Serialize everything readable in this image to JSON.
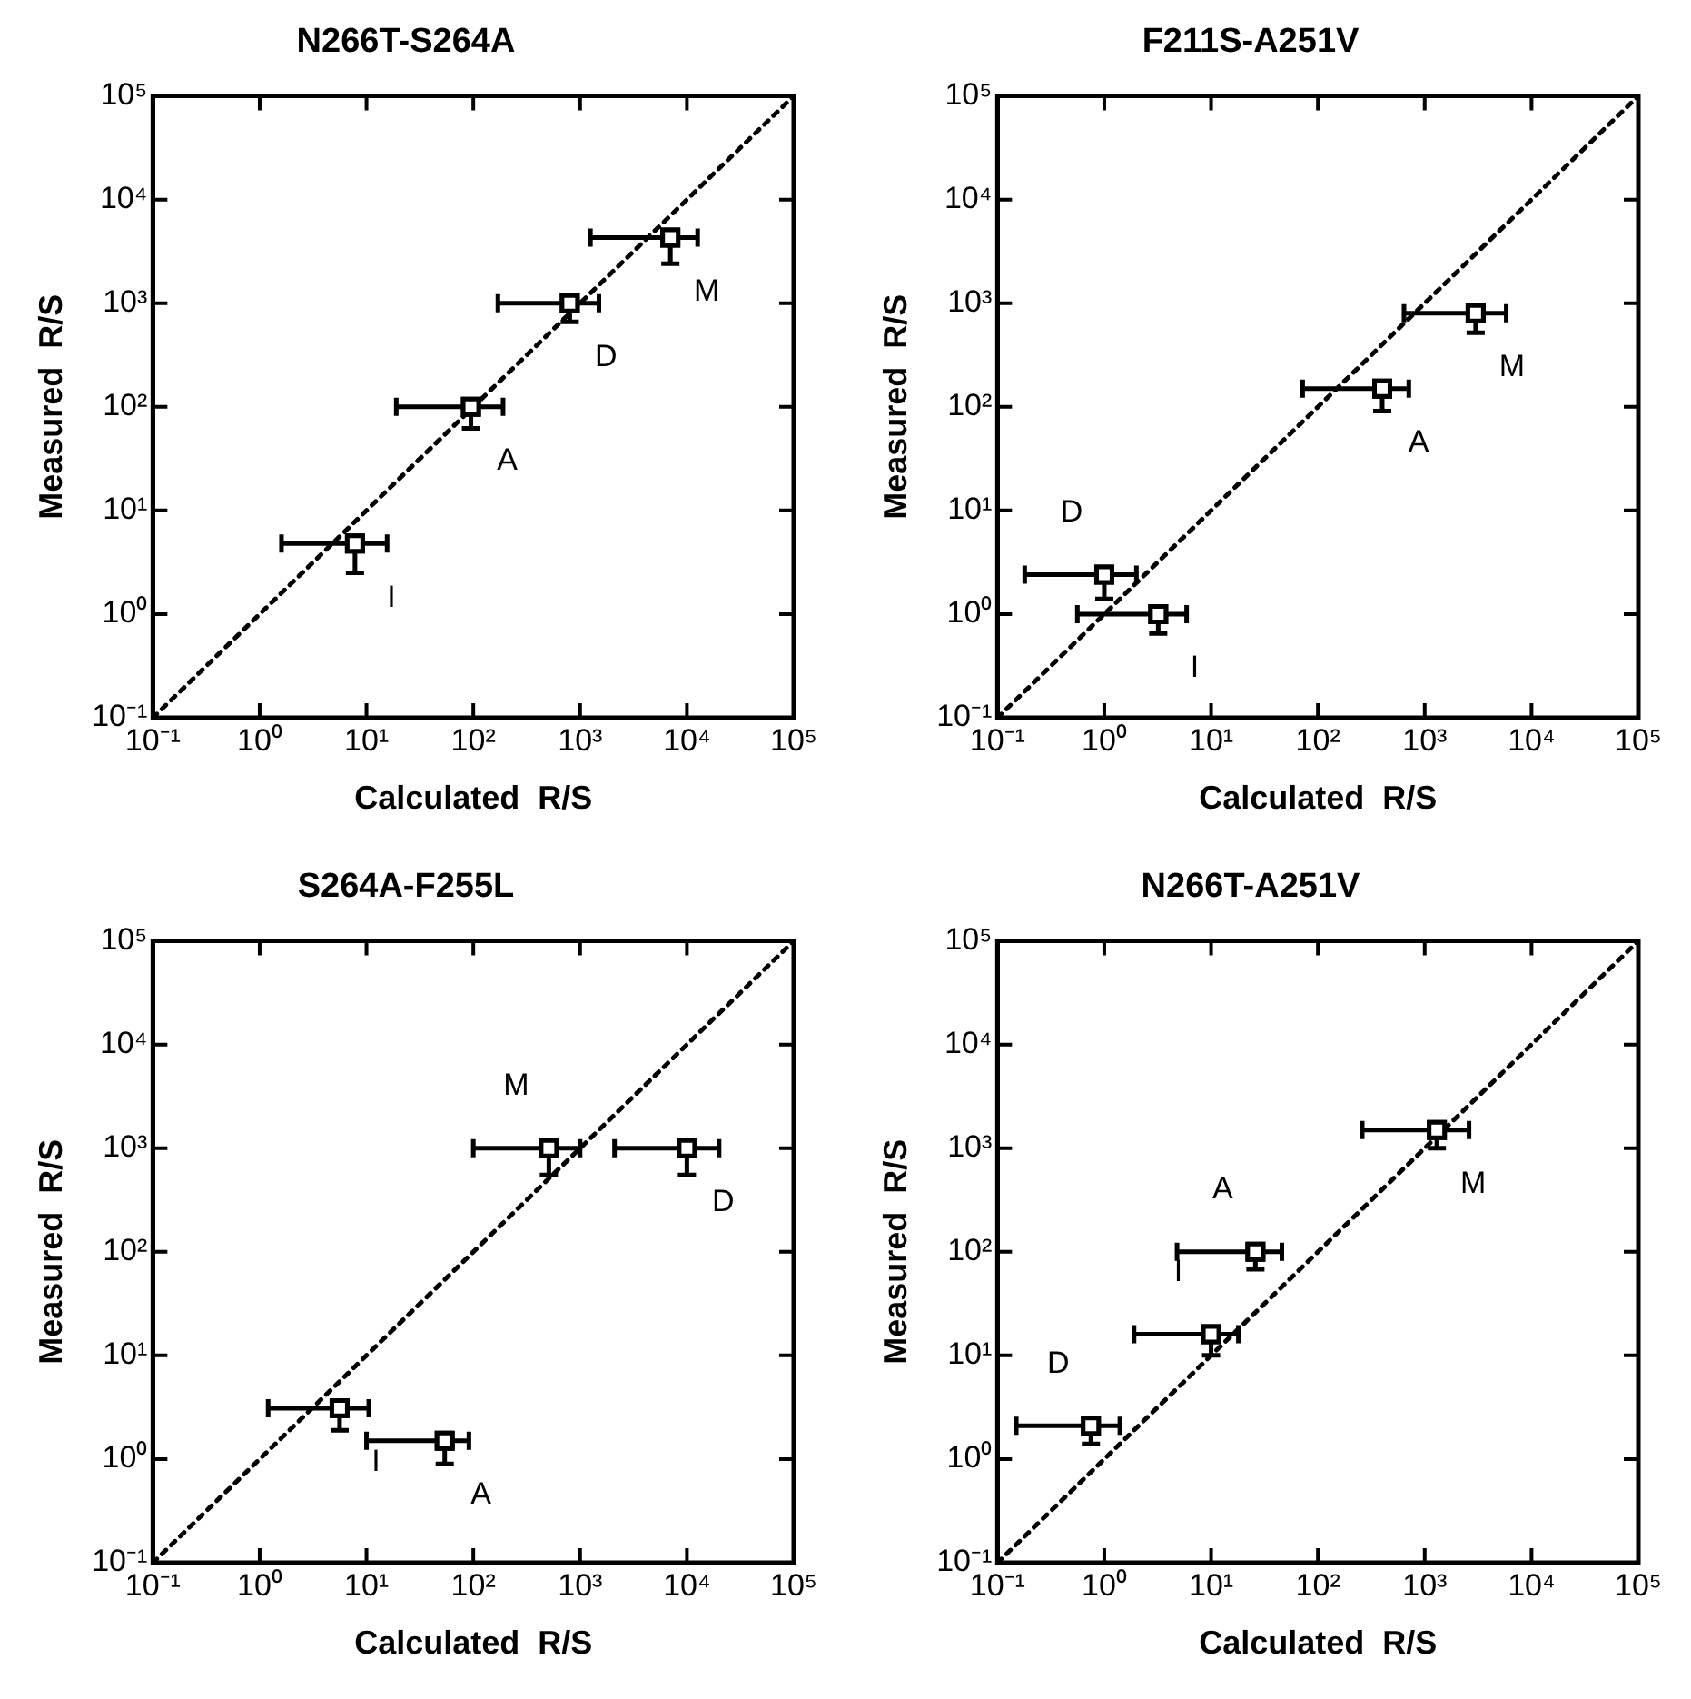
{
  "chart_data": [
    {
      "type": "scatter",
      "title": "N266T-S264A",
      "xlabel": "Calculated  R/S",
      "ylabel": "Measured  R/S",
      "log": "xy",
      "grid": false,
      "legend": false,
      "xlim": [
        0.1,
        100000
      ],
      "ylim": [
        0.1,
        100000
      ],
      "xticks": [
        {
          "value": 0.1,
          "label": "10⁻¹"
        },
        {
          "value": 1,
          "label": "10⁰"
        },
        {
          "value": 10,
          "label": "10¹"
        },
        {
          "value": 100,
          "label": "10²"
        },
        {
          "value": 1000,
          "label": "10³"
        },
        {
          "value": 10000,
          "label": "10⁴"
        },
        {
          "value": 100000,
          "label": "10⁵"
        }
      ],
      "yticks": [
        {
          "value": 0.1,
          "label": "10⁻¹"
        },
        {
          "value": 1,
          "label": "10⁰"
        },
        {
          "value": 10,
          "label": "10¹"
        },
        {
          "value": 100,
          "label": "10²"
        },
        {
          "value": 1000,
          "label": "10³"
        },
        {
          "value": 10000,
          "label": "10⁴"
        },
        {
          "value": 100000,
          "label": "10⁵"
        }
      ],
      "series": [
        {
          "color": "#000000",
          "marker": "square",
          "x": [
            7.8,
            95,
            800,
            7000
          ],
          "values": [
            4.8,
            100,
            1000,
            4300
          ],
          "value_labels": [
            "I",
            "A",
            "D",
            "M"
          ],
          "xerrors": [
            [
              1.6,
              15.6
            ],
            [
              19,
              190
            ],
            [
              170,
              1500
            ],
            [
              1250,
              12600
            ]
          ],
          "errors": [
            [
              2.5,
              4.8
            ],
            [
              62,
              100
            ],
            [
              660,
              1000
            ],
            [
              2400,
              4300
            ]
          ]
        },
        {
          "type": "line",
          "color": "#000000",
          "line_style": "dotted",
          "x": [
            0.1,
            100000
          ],
          "values": [
            0.1,
            100000
          ]
        }
      ]
    },
    {
      "type": "scatter",
      "title": "F211S-A251V",
      "xlabel": "Calculated  R/S",
      "ylabel": "Measured  R/S",
      "log": "xy",
      "grid": false,
      "legend": false,
      "xlim": [
        0.1,
        100000
      ],
      "ylim": [
        0.1,
        100000
      ],
      "xticks": [
        {
          "value": 0.1,
          "label": "10⁻¹"
        },
        {
          "value": 1,
          "label": "10⁰"
        },
        {
          "value": 10,
          "label": "10¹"
        },
        {
          "value": 100,
          "label": "10²"
        },
        {
          "value": 1000,
          "label": "10³"
        },
        {
          "value": 10000,
          "label": "10⁴"
        },
        {
          "value": 100000,
          "label": "10⁵"
        }
      ],
      "yticks": [
        {
          "value": 0.1,
          "label": "10⁻¹"
        },
        {
          "value": 1,
          "label": "10⁰"
        },
        {
          "value": 10,
          "label": "10¹"
        },
        {
          "value": 100,
          "label": "10²"
        },
        {
          "value": 1000,
          "label": "10³"
        },
        {
          "value": 10000,
          "label": "10⁴"
        },
        {
          "value": 100000,
          "label": "10⁵"
        }
      ],
      "series": [
        {
          "color": "#000000",
          "marker": "square",
          "x": [
            1.0,
            3.2,
            400,
            3000
          ],
          "values": [
            2.4,
            1.0,
            150,
            800
          ],
          "value_labels": [
            "D",
            "I",
            "A",
            "M"
          ],
          "xerrors": [
            [
              0.18,
              2
            ],
            [
              0.56,
              5.9
            ],
            [
              72,
              710
            ],
            [
              640,
              5800
            ]
          ],
          "errors": [
            [
              1.4,
              2.4
            ],
            [
              0.65,
              1.0
            ],
            [
              91,
              150
            ],
            [
              520,
              800
            ]
          ]
        },
        {
          "type": "line",
          "color": "#000000",
          "line_style": "dotted",
          "x": [
            0.1,
            100000
          ],
          "values": [
            0.1,
            100000
          ]
        }
      ]
    },
    {
      "type": "scatter",
      "title": "S264A-F255L",
      "xlabel": "Calculated  R/S",
      "ylabel": "Measured  R/S",
      "log": "xy",
      "grid": false,
      "legend": false,
      "xlim": [
        0.1,
        100000
      ],
      "ylim": [
        0.1,
        100000
      ],
      "xticks": [
        {
          "value": 0.1,
          "label": "10⁻¹"
        },
        {
          "value": 1,
          "label": "10⁰"
        },
        {
          "value": 10,
          "label": "10¹"
        },
        {
          "value": 100,
          "label": "10²"
        },
        {
          "value": 1000,
          "label": "10³"
        },
        {
          "value": 10000,
          "label": "10⁴"
        },
        {
          "value": 100000,
          "label": "10⁵"
        }
      ],
      "yticks": [
        {
          "value": 0.1,
          "label": "10⁻¹"
        },
        {
          "value": 1,
          "label": "10⁰"
        },
        {
          "value": 10,
          "label": "10¹"
        },
        {
          "value": 100,
          "label": "10²"
        },
        {
          "value": 1000,
          "label": "10³"
        },
        {
          "value": 10000,
          "label": "10⁴"
        },
        {
          "value": 100000,
          "label": "10⁵"
        }
      ],
      "series": [
        {
          "color": "#000000",
          "marker": "square",
          "x": [
            5.6,
            54,
            510,
            10000
          ],
          "values": [
            3.1,
            1.5,
            1000,
            1000
          ],
          "value_labels": [
            "I",
            "A",
            "M",
            "D"
          ],
          "xerrors": [
            [
              1.2,
              10.5
            ],
            [
              10,
              91
            ],
            [
              100,
              1000
            ],
            [
              2100,
              20000
            ]
          ],
          "errors": [
            [
              1.9,
              3.1
            ],
            [
              0.9,
              1.5
            ],
            [
              550,
              1000
            ],
            [
              550,
              1000
            ]
          ]
        },
        {
          "type": "line",
          "color": "#000000",
          "line_style": "dotted",
          "x": [
            0.1,
            100000
          ],
          "values": [
            0.1,
            100000
          ]
        }
      ]
    },
    {
      "type": "scatter",
      "title": "N266T-A251V",
      "xlabel": "Calculated  R/S",
      "ylabel": "Measured  R/S",
      "log": "xy",
      "grid": false,
      "legend": false,
      "xlim": [
        0.1,
        100000
      ],
      "ylim": [
        0.1,
        100000
      ],
      "xticks": [
        {
          "value": 0.1,
          "label": "10⁻¹"
        },
        {
          "value": 1,
          "label": "10⁰"
        },
        {
          "value": 10,
          "label": "10¹"
        },
        {
          "value": 100,
          "label": "10²"
        },
        {
          "value": 1000,
          "label": "10³"
        },
        {
          "value": 10000,
          "label": "10⁴"
        },
        {
          "value": 100000,
          "label": "10⁵"
        }
      ],
      "yticks": [
        {
          "value": 0.1,
          "label": "10⁻¹"
        },
        {
          "value": 1,
          "label": "10⁰"
        },
        {
          "value": 10,
          "label": "10¹"
        },
        {
          "value": 100,
          "label": "10²"
        },
        {
          "value": 1000,
          "label": "10³"
        },
        {
          "value": 10000,
          "label": "10⁴"
        },
        {
          "value": 100000,
          "label": "10⁵"
        }
      ],
      "series": [
        {
          "color": "#000000",
          "marker": "square",
          "x": [
            0.75,
            10,
            26,
            1300
          ],
          "values": [
            2.1,
            16,
            100,
            1500
          ],
          "value_labels": [
            "D",
            "I",
            "A",
            "M"
          ],
          "xerrors": [
            [
              0.15,
              1.4
            ],
            [
              1.9,
              18
            ],
            [
              4.8,
              46
            ],
            [
              260,
              2600
            ]
          ],
          "errors": [
            [
              1.4,
              2.1
            ],
            [
              10,
              16
            ],
            [
              68,
              100
            ],
            [
              1000,
              1500
            ]
          ]
        },
        {
          "type": "line",
          "color": "#000000",
          "line_style": "dotted",
          "x": [
            0.1,
            100000
          ],
          "values": [
            0.1,
            100000
          ]
        }
      ]
    }
  ]
}
